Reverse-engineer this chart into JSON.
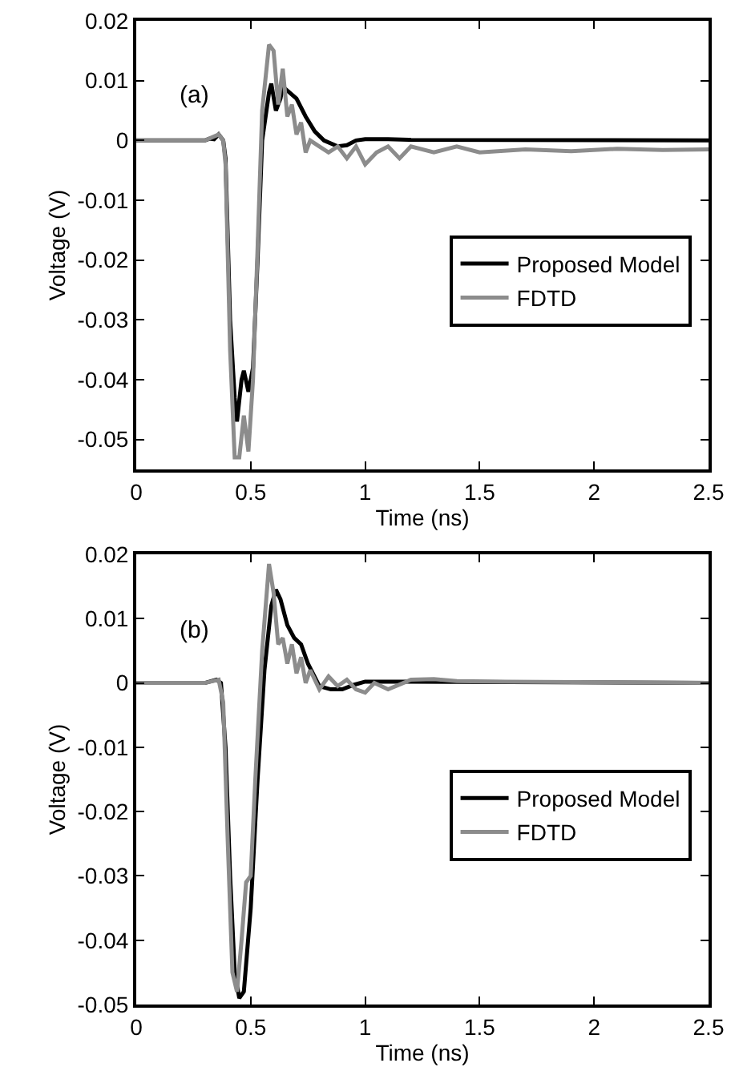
{
  "chart_data": [
    {
      "type": "line",
      "xlabel": "Time (ns)",
      "ylabel": "Voltage (V)",
      "annotations": [
        "(a)"
      ],
      "xlim": [
        0,
        2.5
      ],
      "xticks": [
        0,
        0.5,
        1,
        1.5,
        2,
        2.5
      ],
      "ylim": [
        -0.055,
        0.02
      ],
      "yticks": [
        -0.05,
        -0.04,
        -0.03,
        -0.02,
        -0.01,
        0,
        0.01,
        0.02
      ],
      "legend": "right",
      "line_style": "solid",
      "series": [
        {
          "name": "Proposed Model",
          "color": "#000000",
          "x": [
            0,
            0.3,
            0.32,
            0.34,
            0.36,
            0.38,
            0.39,
            0.41,
            0.43,
            0.44,
            0.46,
            0.47,
            0.49,
            0.51,
            0.53,
            0.55,
            0.58,
            0.59,
            0.61,
            0.63,
            0.64,
            0.67,
            0.7,
            0.74,
            0.78,
            0.82,
            0.88,
            0.92,
            0.96,
            1.0,
            1.1,
            1.2,
            2.5
          ],
          "values": [
            0,
            0,
            0.0003,
            0.0002,
            0.001,
            0,
            -0.003,
            -0.03,
            -0.043,
            -0.047,
            -0.04,
            -0.0385,
            -0.042,
            -0.038,
            -0.02,
            0,
            0.008,
            0.0095,
            0.005,
            0.007,
            0.009,
            0.008,
            0.007,
            0.004,
            0.0015,
            0,
            -0.001,
            -0.0008,
            0,
            0.0002,
            0.0002,
            0.0001,
            0
          ]
        },
        {
          "name": "FDTD",
          "color": "#8c8c8c",
          "x": [
            0,
            0.3,
            0.36,
            0.38,
            0.39,
            0.41,
            0.43,
            0.45,
            0.47,
            0.49,
            0.51,
            0.53,
            0.55,
            0.58,
            0.6,
            0.62,
            0.64,
            0.66,
            0.68,
            0.7,
            0.72,
            0.74,
            0.76,
            0.8,
            0.84,
            0.88,
            0.92,
            0.96,
            1.0,
            1.05,
            1.1,
            1.15,
            1.2,
            1.3,
            1.4,
            1.5,
            1.7,
            1.9,
            2.1,
            2.3,
            2.5
          ],
          "values": [
            0,
            0,
            0.001,
            0,
            -0.004,
            -0.035,
            -0.053,
            -0.053,
            -0.046,
            -0.052,
            -0.04,
            -0.018,
            0.005,
            0.016,
            0.015,
            0.006,
            0.012,
            0.004,
            0.006,
            0.001,
            0.003,
            -0.002,
            0,
            -0.001,
            -0.002,
            -0.001,
            -0.003,
            -0.001,
            -0.004,
            -0.002,
            -0.001,
            -0.003,
            -0.001,
            -0.002,
            -0.001,
            -0.002,
            -0.0015,
            -0.0018,
            -0.0014,
            -0.0016,
            -0.0015
          ]
        }
      ]
    },
    {
      "type": "line",
      "xlabel": "Time (ns)",
      "ylabel": "Voltage (V)",
      "annotations": [
        "(b)"
      ],
      "xlim": [
        0,
        2.5
      ],
      "xticks": [
        0,
        0.5,
        1,
        1.5,
        2,
        2.5
      ],
      "ylim": [
        -0.05,
        0.02
      ],
      "yticks": [
        -0.05,
        -0.04,
        -0.03,
        -0.02,
        -0.01,
        0,
        0.01,
        0.02
      ],
      "legend": "right",
      "line_style": "solid",
      "series": [
        {
          "name": "Proposed Model",
          "color": "#000000",
          "x": [
            0,
            0.3,
            0.35,
            0.37,
            0.39,
            0.41,
            0.43,
            0.45,
            0.47,
            0.5,
            0.53,
            0.56,
            0.59,
            0.61,
            0.63,
            0.66,
            0.69,
            0.72,
            0.75,
            0.8,
            0.85,
            0.9,
            0.95,
            1.0,
            1.1,
            2.5
          ],
          "values": [
            0,
            0,
            0.0005,
            0,
            -0.01,
            -0.03,
            -0.045,
            -0.049,
            -0.048,
            -0.035,
            -0.015,
            0.002,
            0.012,
            0.0145,
            0.013,
            0.009,
            0.007,
            0.006,
            0.003,
            -0.0005,
            -0.001,
            -0.001,
            -0.0003,
            0.0002,
            0.0002,
            0
          ]
        },
        {
          "name": "FDTD",
          "color": "#8c8c8c",
          "x": [
            0,
            0.3,
            0.36,
            0.38,
            0.4,
            0.42,
            0.44,
            0.46,
            0.48,
            0.5,
            0.52,
            0.55,
            0.58,
            0.6,
            0.62,
            0.64,
            0.66,
            0.68,
            0.7,
            0.72,
            0.74,
            0.76,
            0.8,
            0.84,
            0.88,
            0.92,
            0.96,
            1.0,
            1.04,
            1.1,
            1.2,
            1.3,
            1.4,
            1.6,
            2.5
          ],
          "values": [
            0,
            0,
            0.0005,
            -0.003,
            -0.025,
            -0.045,
            -0.048,
            -0.04,
            -0.031,
            -0.03,
            -0.015,
            0.005,
            0.0185,
            0.014,
            0.006,
            0.007,
            0.003,
            0.006,
            0.0015,
            0.004,
            0,
            0.002,
            -0.001,
            0.001,
            -0.0005,
            0.0005,
            -0.001,
            -0.0015,
            0,
            -0.001,
            0.0005,
            0.0006,
            0.0003,
            0.0002,
            0
          ]
        }
      ]
    }
  ]
}
